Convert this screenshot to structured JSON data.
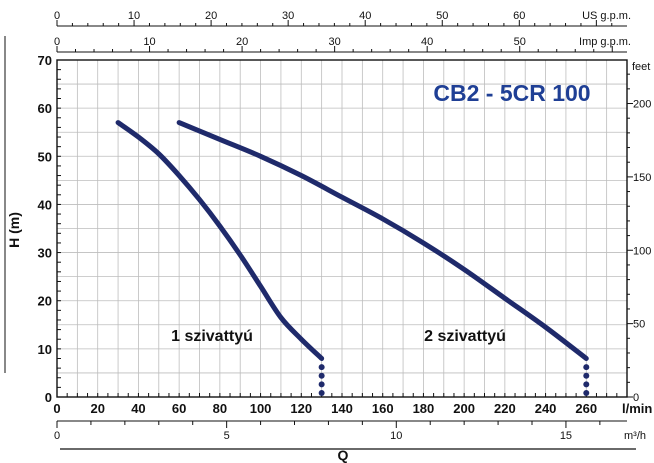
{
  "chart_data": {
    "type": "line",
    "title": "CB2 - 5CR 100",
    "xlabel": "Q",
    "ylabel": "H (m)",
    "grid": true,
    "x_unit": "l/min",
    "x_range": [
      0,
      280
    ],
    "y_range": [
      0,
      70
    ],
    "x_ticks": [
      "0",
      "20",
      "40",
      "60",
      "80",
      "100",
      "120",
      "140",
      "160",
      "180",
      "200",
      "220",
      "240",
      "260"
    ],
    "y_ticks": [
      "0",
      "10",
      "20",
      "30",
      "40",
      "50",
      "60",
      "70"
    ],
    "secondary_axes": {
      "top_us": {
        "unit": "US g.p.m.",
        "ticks": [
          "0",
          "10",
          "20",
          "30",
          "40",
          "50",
          "60"
        ]
      },
      "top_imp": {
        "unit": "Imp g.p.m.",
        "ticks": [
          "0",
          "10",
          "20",
          "30",
          "40",
          "50"
        ]
      },
      "bottom_m3h": {
        "unit": "m³/h",
        "ticks": [
          "0",
          "5",
          "10",
          "15"
        ]
      },
      "right_feet": {
        "unit": "feet",
        "ticks": [
          "0",
          "50",
          "100",
          "150",
          "200"
        ]
      }
    },
    "colors": {
      "curve": "#1f2a6b",
      "title": "#1f3f95",
      "grid": "#bdbdbd"
    },
    "series": [
      {
        "name": "1 szivattyú",
        "x": [
          30,
          40,
          50,
          60,
          70,
          80,
          90,
          100,
          110,
          120,
          130
        ],
        "y": [
          57,
          54,
          50.5,
          46,
          41,
          35.5,
          29.5,
          23,
          16.5,
          12,
          8
        ]
      },
      {
        "name": "2 szivattyú",
        "x": [
          60,
          80,
          100,
          120,
          140,
          160,
          180,
          200,
          220,
          240,
          260
        ],
        "y": [
          57,
          53.5,
          50,
          46,
          41.5,
          37,
          32,
          26.5,
          20.5,
          14.5,
          8
        ]
      }
    ]
  }
}
